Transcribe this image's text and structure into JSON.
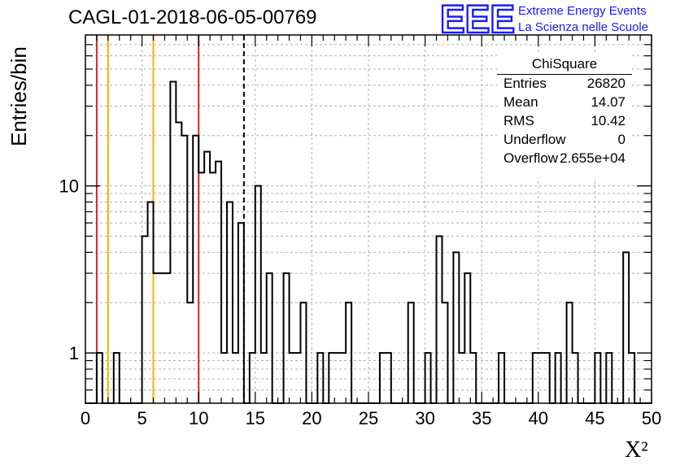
{
  "chart_data": {
    "type": "histogram",
    "title": "CAGL-01-2018-06-05-00769",
    "xlabel": "X²",
    "ylabel": "Entries/bin",
    "xlim": [
      0,
      50
    ],
    "ylim": [
      0.5,
      80
    ],
    "y_scale": "log",
    "grid": true,
    "x_ticks": [
      0,
      5,
      10,
      15,
      20,
      25,
      30,
      35,
      40,
      45,
      50
    ],
    "y_ticks": [
      1,
      10
    ],
    "bin_width": 0.5,
    "bins": [
      {
        "x": 1.0,
        "y": 1
      },
      {
        "x": 2.5,
        "y": 1
      },
      {
        "x": 5.0,
        "y": 5
      },
      {
        "x": 5.5,
        "y": 8
      },
      {
        "x": 6.0,
        "y": 3
      },
      {
        "x": 6.5,
        "y": 3
      },
      {
        "x": 7.0,
        "y": 3
      },
      {
        "x": 7.5,
        "y": 42
      },
      {
        "x": 8.0,
        "y": 24
      },
      {
        "x": 8.5,
        "y": 20
      },
      {
        "x": 9.0,
        "y": 2
      },
      {
        "x": 9.5,
        "y": 20
      },
      {
        "x": 10.0,
        "y": 12
      },
      {
        "x": 10.5,
        "y": 16
      },
      {
        "x": 11.0,
        "y": 12
      },
      {
        "x": 11.5,
        "y": 14
      },
      {
        "x": 12.0,
        "y": 1
      },
      {
        "x": 12.5,
        "y": 8
      },
      {
        "x": 13.0,
        "y": 1
      },
      {
        "x": 13.5,
        "y": 6
      },
      {
        "x": 14.5,
        "y": 1
      },
      {
        "x": 15.0,
        "y": 10
      },
      {
        "x": 15.5,
        "y": 1
      },
      {
        "x": 16.0,
        "y": 3
      },
      {
        "x": 17.5,
        "y": 3
      },
      {
        "x": 18.0,
        "y": 1
      },
      {
        "x": 18.5,
        "y": 1
      },
      {
        "x": 19.0,
        "y": 2
      },
      {
        "x": 20.5,
        "y": 1
      },
      {
        "x": 21.5,
        "y": 1
      },
      {
        "x": 22.0,
        "y": 1
      },
      {
        "x": 22.5,
        "y": 1
      },
      {
        "x": 23.0,
        "y": 2
      },
      {
        "x": 26.0,
        "y": 1
      },
      {
        "x": 26.5,
        "y": 1
      },
      {
        "x": 28.5,
        "y": 2
      },
      {
        "x": 30.0,
        "y": 1
      },
      {
        "x": 31.0,
        "y": 5
      },
      {
        "x": 31.5,
        "y": 2
      },
      {
        "x": 32.5,
        "y": 4
      },
      {
        "x": 33.0,
        "y": 1
      },
      {
        "x": 33.5,
        "y": 3
      },
      {
        "x": 34.0,
        "y": 1
      },
      {
        "x": 36.5,
        "y": 1
      },
      {
        "x": 39.5,
        "y": 1
      },
      {
        "x": 40.0,
        "y": 1
      },
      {
        "x": 40.5,
        "y": 1
      },
      {
        "x": 41.5,
        "y": 1
      },
      {
        "x": 42.5,
        "y": 2
      },
      {
        "x": 43.0,
        "y": 1
      },
      {
        "x": 45.0,
        "y": 1
      },
      {
        "x": 46.0,
        "y": 1
      },
      {
        "x": 47.5,
        "y": 4
      },
      {
        "x": 48.0,
        "y": 1
      }
    ],
    "vertical_lines": [
      {
        "x": 1,
        "color": "#e02020",
        "style": "solid"
      },
      {
        "x": 2,
        "color": "#f0b400",
        "style": "solid"
      },
      {
        "x": 6,
        "color": "#f0b400",
        "style": "solid"
      },
      {
        "x": 10,
        "color": "#e02020",
        "style": "solid"
      },
      {
        "x": 14,
        "color": "#000000",
        "style": "dashed"
      }
    ],
    "stats_box": {
      "name": "ChiSquare",
      "rows": [
        {
          "label": "Entries",
          "value": "26820"
        },
        {
          "label": "Mean",
          "value": "14.07"
        },
        {
          "label": "RMS",
          "value": "10.42"
        },
        {
          "label": "Underflow",
          "value": "0"
        },
        {
          "label": "Overflow",
          "value": "2.655e+04"
        }
      ]
    }
  },
  "logo": {
    "mark": "EEE",
    "line1": "Extreme Energy Events",
    "line2": "La Scienza nelle Scuole",
    "color": "#1a1aff"
  }
}
